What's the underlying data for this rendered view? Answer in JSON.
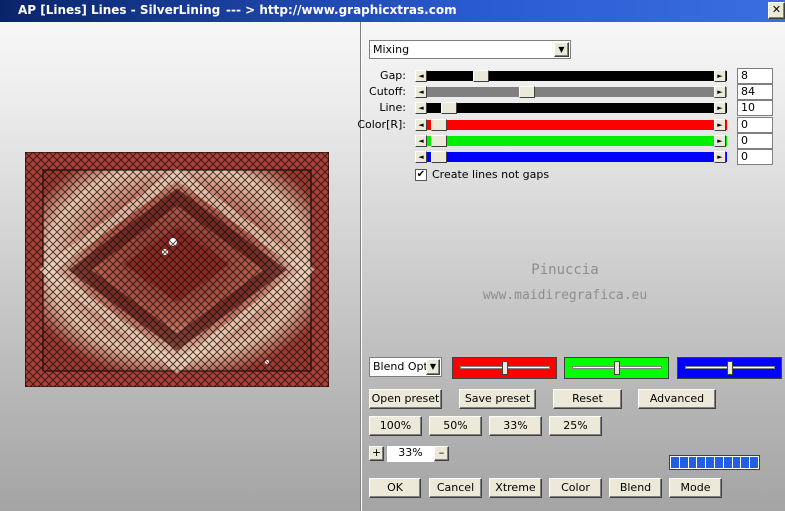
{
  "window": {
    "title": "AP [Lines]  Lines - SilverLining",
    "url": "--- > http://www.graphicxtras.com"
  },
  "mode_select": "Mixing",
  "slider_labels": [
    "Gap:",
    "Cutoff:",
    "Line:",
    "Color[R]:"
  ],
  "slider_values": [
    8,
    84,
    10,
    0,
    0,
    0
  ],
  "checkbox": "Create lines not gaps",
  "watermark": [
    "Pinuccia",
    "www.maidiregrafica.eu"
  ],
  "blend_select": "Blend Opti",
  "preset_buttons": [
    "Open preset",
    "Save preset",
    "Reset",
    "Advanced"
  ],
  "zoom_buttons": [
    "100%",
    "50%",
    "33%",
    "25%"
  ],
  "zoom": {
    "plus": "+",
    "value": "33%",
    "minus": "–"
  },
  "bottom_buttons": [
    "OK",
    "Cancel",
    "Xtreme",
    "Color",
    "Blend",
    "Mode"
  ]
}
